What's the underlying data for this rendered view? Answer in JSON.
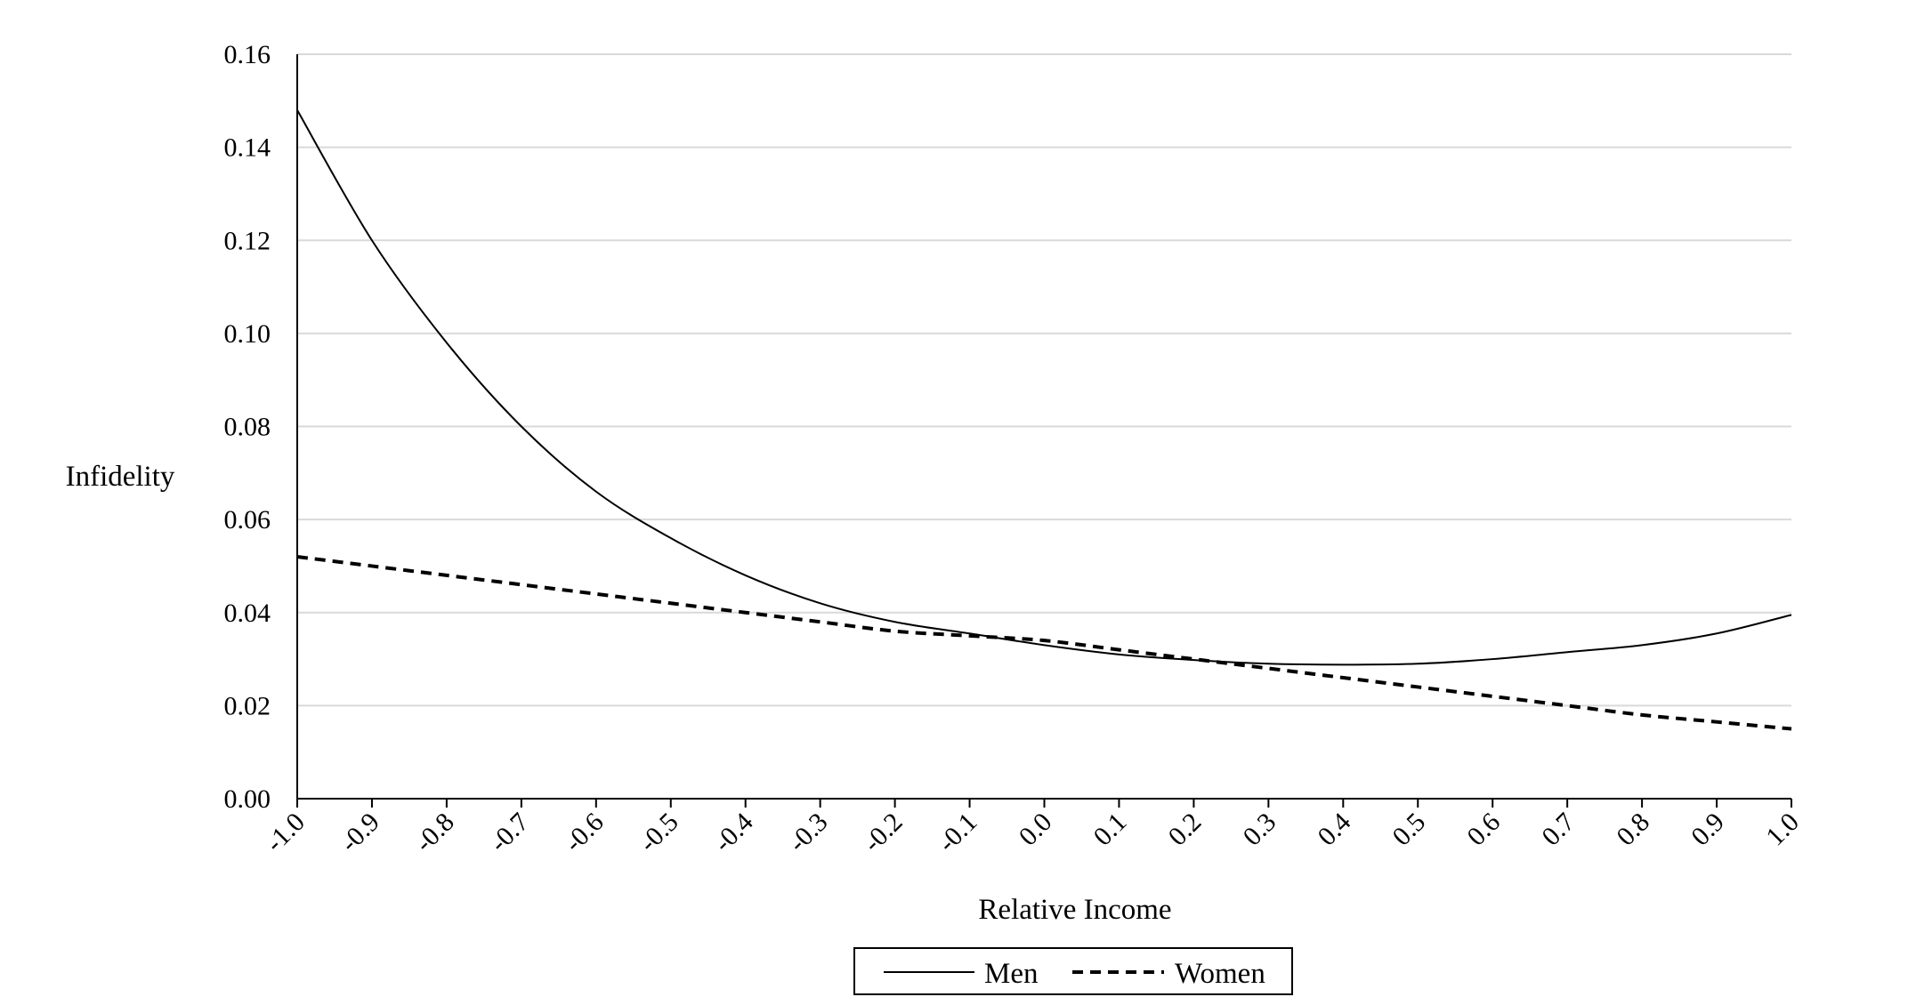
{
  "chart_data": {
    "type": "line",
    "title": "",
    "xlabel": "Relative Income",
    "ylabel": "Infidelity",
    "xlim": [
      -1.0,
      1.0
    ],
    "ylim": [
      0.0,
      0.16
    ],
    "x_ticks": [
      "-1.0",
      "-0.9",
      "-0.8",
      "-0.7",
      "-0.6",
      "-0.5",
      "-0.4",
      "-0.3",
      "-0.2",
      "-0.1",
      "0.0",
      "0.1",
      "0.2",
      "0.3",
      "0.4",
      "0.5",
      "0.6",
      "0.7",
      "0.8",
      "0.9",
      "1.0"
    ],
    "y_ticks": [
      "0.00",
      "0.02",
      "0.04",
      "0.06",
      "0.08",
      "0.10",
      "0.12",
      "0.14",
      "0.16"
    ],
    "grid": "horizontal",
    "legend_position": "bottom",
    "x": [
      -1.0,
      -0.9,
      -0.8,
      -0.7,
      -0.6,
      -0.5,
      -0.4,
      -0.3,
      -0.2,
      -0.1,
      0.0,
      0.1,
      0.2,
      0.3,
      0.4,
      0.5,
      0.6,
      0.7,
      0.8,
      0.9,
      1.0
    ],
    "series": [
      {
        "name": "Men",
        "style": "solid",
        "color": "#000000",
        "values": [
          0.148,
          0.12,
          0.098,
          0.08,
          0.066,
          0.056,
          0.048,
          0.042,
          0.038,
          0.0355,
          0.033,
          0.031,
          0.0298,
          0.029,
          0.0288,
          0.029,
          0.03,
          0.0315,
          0.033,
          0.0355,
          0.0395
        ]
      },
      {
        "name": "Women",
        "style": "dashed",
        "color": "#000000",
        "values": [
          0.052,
          0.05,
          0.048,
          0.046,
          0.044,
          0.042,
          0.04,
          0.038,
          0.036,
          0.035,
          0.034,
          0.032,
          0.03,
          0.028,
          0.026,
          0.024,
          0.022,
          0.02,
          0.018,
          0.0165,
          0.015
        ]
      }
    ]
  }
}
